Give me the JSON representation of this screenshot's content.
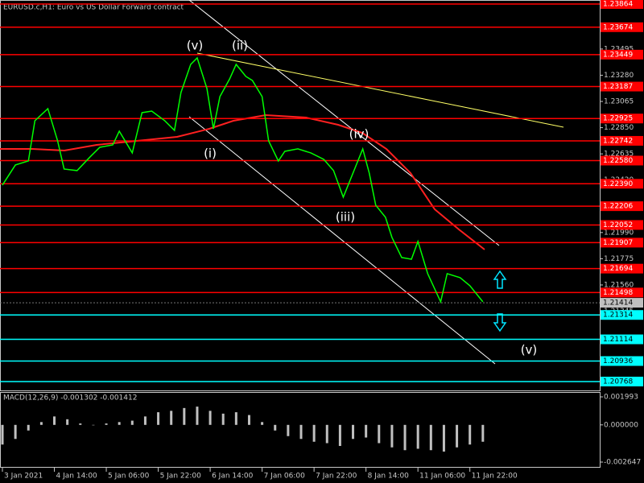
{
  "chart_data": [
    {
      "type": "line",
      "title": "EURUSD.c,H1:  Euro vs US Dollar Forward contract",
      "annotations": [
        "(v)",
        "(ii)",
        "(i)",
        "(iii)",
        "(iv)",
        "(v)"
      ],
      "series": [
        {
          "color": "#00ff00",
          "x": [
            0,
            4,
            8,
            10,
            14,
            17,
            19,
            23,
            27,
            30,
            34,
            36,
            40,
            43,
            46,
            50,
            53,
            55,
            58,
            60,
            63,
            65,
            67,
            70,
            72,
            75,
            77,
            80,
            82,
            85,
            87,
            91,
            95,
            99,
            102,
            105,
            108,
            111,
            113,
            115,
            118,
            120,
            123,
            126,
            128,
            131,
            135,
            137,
            141,
            144,
            148
          ],
          "values": [
            1.22379,
            1.22544,
            1.22577,
            1.22907,
            1.23006,
            1.22742,
            1.22511,
            1.22498,
            1.2261,
            1.22689,
            1.22709,
            1.22821,
            1.22643,
            1.22973,
            1.22986,
            1.22907,
            1.22828,
            1.23138,
            1.23369,
            1.23422,
            1.23171,
            1.22841,
            1.23105,
            1.2325,
            1.23369,
            1.2327,
            1.23237,
            1.23105,
            1.22742,
            1.22577,
            1.22656,
            1.22676,
            1.22643,
            1.2259,
            1.22498,
            1.2228,
            1.22478,
            1.22676,
            1.22478,
            1.22214,
            1.22115,
            1.2195,
            1.21785,
            1.21771,
            1.21917,
            1.21653,
            1.21422,
            1.21653,
            1.2162,
            1.21554,
            1.21422
          ]
        }
      ],
      "xlim": [
        0,
        184
      ],
      "xticks": [
        {
          "value": 0,
          "label": "3 Jan 2021"
        },
        {
          "value": 16,
          "label": "4 Jan 14:00"
        },
        {
          "value": 32,
          "label": "5 Jan 06:00"
        },
        {
          "value": 48,
          "label": "5 Jan 22:00"
        },
        {
          "value": 64,
          "label": "6 Jan 14:00"
        },
        {
          "value": 80,
          "label": "7 Jan 06:00"
        },
        {
          "value": 96,
          "label": "7 Jan 22:00"
        },
        {
          "value": 112,
          "label": "8 Jan 14:00"
        },
        {
          "value": 128,
          "label": "11 Jan 06:00"
        },
        {
          "value": 144,
          "label": "11 Jan 22:00"
        }
      ],
      "ylim": [
        1.20695,
        1.23897
      ],
      "yticks": [
        {
          "value": 1.23495,
          "label": "1.23495"
        },
        {
          "value": 1.2328,
          "label": "1.23280"
        },
        {
          "value": 1.23065,
          "label": "1.23065"
        },
        {
          "value": 1.2285,
          "label": "1.22850"
        },
        {
          "value": 1.22635,
          "label": "1.22635"
        },
        {
          "value": 1.2242,
          "label": "1.22420"
        },
        {
          "value": 1.22205,
          "label": "1.22205"
        },
        {
          "value": 1.2199,
          "label": "1.21990"
        },
        {
          "value": 1.21775,
          "label": "1.21775"
        },
        {
          "value": 1.2156,
          "label": "1.21560"
        },
        {
          "value": 1.21345,
          "label": "1.21345"
        }
      ],
      "red_levels": [
        {
          "value": 1.23864,
          "label": "1.23864"
        },
        {
          "value": 1.23674,
          "label": "1.23674"
        },
        {
          "value": 1.23449,
          "label": "1.23449"
        },
        {
          "value": 1.23187,
          "label": "1.23187"
        },
        {
          "value": 1.22925,
          "label": "1.22925"
        },
        {
          "value": 1.22742,
          "label": "1.22742"
        },
        {
          "value": 1.2258,
          "label": "1.22580"
        },
        {
          "value": 1.2239,
          "label": "1.22390"
        },
        {
          "value": 1.22206,
          "label": "1.22206"
        },
        {
          "value": 1.22052,
          "label": "1.22052"
        },
        {
          "value": 1.21907,
          "label": "1.21907"
        },
        {
          "value": 1.21694,
          "label": "1.21694"
        },
        {
          "value": 1.21498,
          "label": "1.21498"
        }
      ],
      "red_color": "#ff0000",
      "cyan_levels": [
        {
          "value": 1.21314,
          "label": "1.21314"
        },
        {
          "value": 1.21114,
          "label": "1.21114"
        },
        {
          "value": 1.20936,
          "label": "1.20936"
        },
        {
          "value": 1.20768,
          "label": "1.20768"
        }
      ],
      "cyan_color": "#00ffff",
      "current_price": {
        "value": 1.21414,
        "label": "1.21414"
      }
    },
    {
      "type": "bar",
      "title": "MACD(12,26,9) -0.001302 -0.001412",
      "color": "#c0c0c0",
      "x": [
        0,
        4,
        8,
        12,
        16,
        20,
        24,
        28,
        32,
        36,
        40,
        44,
        48,
        52,
        56,
        60,
        64,
        68,
        72,
        76,
        80,
        84,
        88,
        92,
        96,
        100,
        104,
        108,
        112,
        116,
        120,
        124,
        128,
        132,
        136,
        140,
        144,
        148
      ],
      "values": [
        -0.0014,
        -0.001,
        -0.0004,
        0.0002,
        0.0006,
        0.0004,
        0.0001,
        0,
        0.0001,
        0.0002,
        0.0003,
        0.0006,
        0.0009,
        0.001,
        0.0012,
        0.0013,
        0.001,
        0.0008,
        0.0009,
        0.0007,
        0.0002,
        -0.0004,
        -0.0008,
        -0.001,
        -0.0012,
        -0.0013,
        -0.0015,
        -0.001,
        -0.0009,
        -0.0013,
        -0.0016,
        -0.0018,
        -0.0017,
        -0.0018,
        -0.0019,
        -0.0016,
        -0.0014,
        -0.0012
      ],
      "ylim": [
        -0.00299,
        0.00228
      ],
      "yticks": [
        {
          "value": 0.001993,
          "label": "0.001993"
        },
        {
          "value": 0,
          "label": "0.000000"
        },
        {
          "value": -0.002647,
          "label": "-0.002647"
        }
      ]
    }
  ]
}
